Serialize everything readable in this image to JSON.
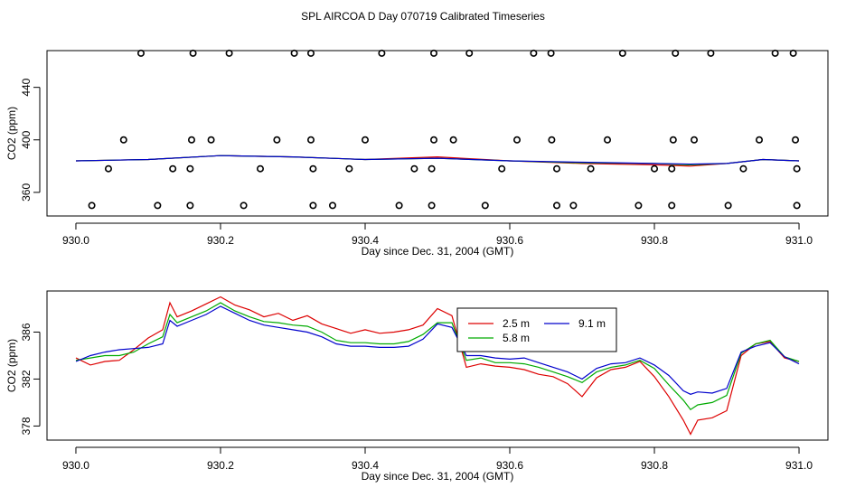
{
  "page_title": "SPL AIRCOA D  Day 070719  Calibrated Timeseries",
  "chart_data": [
    {
      "type": "scatter+line",
      "title": "",
      "xlabel": "Day since Dec. 31, 2004 (GMT)",
      "ylabel": "CO2 (ppm)",
      "xlim": [
        930.0,
        931.0
      ],
      "ylim": [
        342,
        468
      ],
      "x_ticks": [
        "930.0",
        "930.2",
        "930.4",
        "930.6",
        "930.8",
        "931.0"
      ],
      "x_tick_values": [
        930.0,
        930.2,
        930.4,
        930.6,
        930.8,
        931.0
      ],
      "y_ticks": [
        "360",
        "400",
        "440"
      ],
      "y_tick_values": [
        360,
        400,
        440
      ],
      "calibration_points": [
        {
          "level": 350,
          "x": [
            930.022,
            930.113,
            930.158,
            930.232,
            930.328,
            930.355,
            930.447,
            930.492,
            930.566,
            930.665,
            930.688,
            930.778,
            930.824,
            930.902,
            930.997
          ]
        },
        {
          "level": 378,
          "x": [
            930.045,
            930.134,
            930.158,
            930.255,
            930.328,
            930.378,
            930.468,
            930.492,
            930.589,
            930.665,
            930.712,
            930.8,
            930.824,
            930.923,
            930.997
          ]
        },
        {
          "level": 400,
          "x": [
            930.066,
            930.16,
            930.187,
            930.278,
            930.325,
            930.4,
            930.495,
            930.522,
            930.61,
            930.658,
            930.735,
            930.826,
            930.855,
            930.945,
            930.995
          ]
        },
        {
          "level": 466,
          "x": [
            930.09,
            930.162,
            930.212,
            930.302,
            930.325,
            930.423,
            930.495,
            930.544,
            930.633,
            930.657,
            930.756,
            930.829,
            930.878,
            930.967,
            930.992
          ]
        }
      ],
      "series": [
        {
          "name": "2.5 m",
          "color": "#dd0000",
          "x": [
            930.0,
            930.1,
            930.2,
            930.3,
            930.4,
            930.5,
            930.6,
            930.7,
            930.8,
            930.85,
            930.9,
            930.95,
            931.0
          ],
          "values": [
            384,
            385,
            388,
            387,
            385,
            387,
            384,
            382,
            381,
            380,
            382,
            385,
            384
          ]
        },
        {
          "name": "5.8 m",
          "color": "#00aa00",
          "x": [
            930.0,
            930.1,
            930.2,
            930.3,
            930.4,
            930.5,
            930.6,
            930.7,
            930.8,
            930.85,
            930.9,
            930.95,
            931.0
          ],
          "values": [
            384,
            385,
            388,
            387,
            385,
            386,
            384,
            382.5,
            382,
            381,
            382,
            385,
            384
          ]
        },
        {
          "name": "9.1 m",
          "color": "#0000cc",
          "x": [
            930.0,
            930.1,
            930.2,
            930.3,
            930.4,
            930.5,
            930.6,
            930.7,
            930.8,
            930.85,
            930.9,
            930.95,
            931.0
          ],
          "values": [
            384,
            385,
            388,
            387,
            385,
            386,
            384,
            383,
            382,
            381.5,
            382,
            385,
            384
          ]
        }
      ]
    },
    {
      "type": "line",
      "title": "",
      "xlabel": "Day since Dec. 31, 2004 (GMT)",
      "ylabel": "CO2 (ppm)",
      "xlim": [
        930.0,
        931.0
      ],
      "ylim": [
        376.8,
        389.5
      ],
      "x_ticks": [
        "930.0",
        "930.2",
        "930.4",
        "930.6",
        "930.8",
        "931.0"
      ],
      "x_tick_values": [
        930.0,
        930.2,
        930.4,
        930.6,
        930.8,
        931.0
      ],
      "y_ticks": [
        "378",
        "382",
        "386"
      ],
      "y_tick_values": [
        378,
        382,
        386
      ],
      "legend": {
        "position": "top-center",
        "entries": [
          "2.5 m",
          "5.8 m",
          "9.1 m"
        ]
      },
      "series": [
        {
          "name": "2.5 m",
          "color": "#dd0000",
          "x": [
            930.0,
            930.02,
            930.04,
            930.06,
            930.08,
            930.1,
            930.12,
            930.13,
            930.14,
            930.16,
            930.18,
            930.2,
            930.22,
            930.24,
            930.26,
            930.28,
            930.3,
            930.32,
            930.34,
            930.36,
            930.38,
            930.4,
            930.42,
            930.44,
            930.46,
            930.48,
            930.5,
            930.52,
            930.54,
            930.56,
            930.58,
            930.6,
            930.62,
            930.64,
            930.66,
            930.68,
            930.7,
            930.72,
            930.74,
            930.76,
            930.78,
            930.8,
            930.82,
            930.84,
            930.85,
            930.86,
            930.88,
            930.9,
            930.92,
            930.94,
            930.96,
            930.98,
            931.0
          ],
          "values": [
            383.8,
            383.2,
            383.5,
            383.6,
            384.5,
            385.5,
            386.2,
            388.5,
            387.3,
            387.8,
            388.4,
            389.0,
            388.3,
            387.9,
            387.3,
            387.6,
            387.0,
            387.4,
            386.7,
            386.3,
            385.9,
            386.2,
            385.9,
            386.0,
            386.2,
            386.6,
            388.0,
            387.4,
            383.0,
            383.3,
            383.1,
            383.0,
            382.8,
            382.4,
            382.2,
            381.6,
            380.5,
            382.1,
            382.8,
            383.0,
            383.5,
            382.2,
            380.5,
            378.5,
            377.3,
            378.5,
            378.7,
            379.3,
            384.0,
            385.0,
            385.2,
            383.8,
            383.5
          ]
        },
        {
          "name": "5.8 m",
          "color": "#00aa00",
          "x": [
            930.0,
            930.02,
            930.04,
            930.06,
            930.08,
            930.1,
            930.12,
            930.13,
            930.14,
            930.16,
            930.18,
            930.2,
            930.22,
            930.24,
            930.26,
            930.28,
            930.3,
            930.32,
            930.34,
            930.36,
            930.38,
            930.4,
            930.42,
            930.44,
            930.46,
            930.48,
            930.5,
            930.52,
            930.54,
            930.56,
            930.58,
            930.6,
            930.62,
            930.64,
            930.66,
            930.68,
            930.7,
            930.72,
            930.74,
            930.76,
            930.78,
            930.8,
            930.82,
            930.84,
            930.85,
            930.86,
            930.88,
            930.9,
            930.92,
            930.94,
            930.96,
            930.98,
            931.0
          ],
          "values": [
            383.6,
            383.8,
            384.0,
            384.0,
            384.3,
            385.0,
            385.6,
            387.5,
            386.8,
            387.3,
            387.8,
            388.5,
            387.8,
            387.3,
            386.9,
            386.8,
            386.6,
            386.5,
            386.0,
            385.3,
            385.1,
            385.1,
            385.0,
            385.0,
            385.2,
            385.8,
            386.8,
            386.8,
            383.6,
            383.8,
            383.4,
            383.4,
            383.3,
            383.0,
            382.6,
            382.2,
            381.7,
            382.6,
            383.0,
            383.2,
            383.6,
            382.9,
            381.5,
            380.2,
            379.4,
            379.8,
            380.0,
            380.6,
            384.2,
            385.0,
            385.3,
            383.9,
            383.5
          ]
        },
        {
          "name": "9.1 m",
          "color": "#0000cc",
          "x": [
            930.0,
            930.02,
            930.04,
            930.06,
            930.08,
            930.1,
            930.12,
            930.13,
            930.14,
            930.16,
            930.18,
            930.2,
            930.22,
            930.24,
            930.26,
            930.28,
            930.3,
            930.32,
            930.34,
            930.36,
            930.38,
            930.4,
            930.42,
            930.44,
            930.46,
            930.48,
            930.5,
            930.52,
            930.54,
            930.56,
            930.58,
            930.6,
            930.62,
            930.64,
            930.66,
            930.68,
            930.7,
            930.72,
            930.74,
            930.76,
            930.78,
            930.8,
            930.82,
            930.84,
            930.85,
            930.86,
            930.88,
            930.9,
            930.92,
            930.94,
            930.96,
            930.98,
            931.0
          ],
          "values": [
            383.5,
            384.0,
            384.3,
            384.5,
            384.6,
            384.7,
            385.0,
            387.0,
            386.5,
            387.0,
            387.5,
            388.2,
            387.6,
            387.0,
            386.6,
            386.4,
            386.2,
            386.0,
            385.6,
            385.0,
            384.8,
            384.8,
            384.7,
            384.7,
            384.8,
            385.4,
            386.7,
            386.4,
            384.0,
            384.0,
            383.8,
            383.7,
            383.8,
            383.4,
            383.0,
            382.6,
            382.0,
            382.9,
            383.3,
            383.4,
            383.8,
            383.2,
            382.3,
            381.0,
            380.7,
            380.9,
            380.8,
            381.2,
            384.3,
            384.8,
            385.1,
            383.9,
            383.3
          ]
        }
      ]
    }
  ]
}
